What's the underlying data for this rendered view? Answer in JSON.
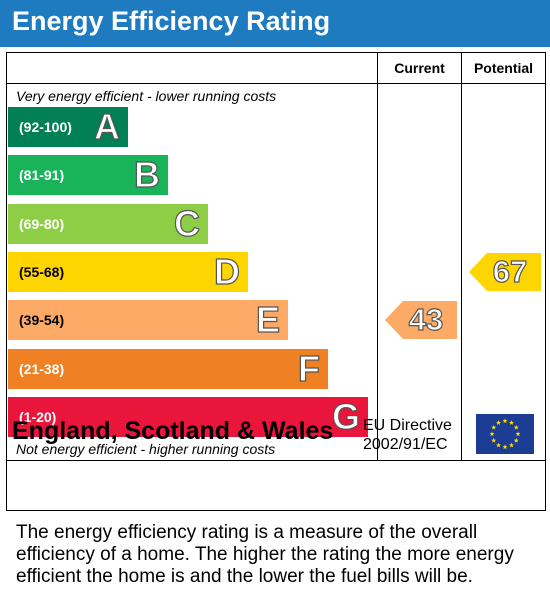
{
  "header": {
    "title": "Energy Efficiency Rating"
  },
  "columns": {
    "current": "Current",
    "potential": "Potential"
  },
  "captions": {
    "top": "Very energy efficient - lower running costs",
    "bottom": "Not energy efficient - higher running costs"
  },
  "chart_data": {
    "type": "bar",
    "categories": [
      "A",
      "B",
      "C",
      "D",
      "E",
      "F",
      "G"
    ],
    "bands": [
      {
        "letter": "A",
        "range": "(92-100)",
        "color": "#008054"
      },
      {
        "letter": "B",
        "range": "(81-91)",
        "color": "#19b459"
      },
      {
        "letter": "C",
        "range": "(69-80)",
        "color": "#8dce46"
      },
      {
        "letter": "D",
        "range": "(55-68)",
        "color": "#ffd500"
      },
      {
        "letter": "E",
        "range": "(39-54)",
        "color": "#fcaa65"
      },
      {
        "letter": "F",
        "range": "(21-38)",
        "color": "#ef8023"
      },
      {
        "letter": "G",
        "range": "(1-20)",
        "color": "#e9153b"
      }
    ],
    "current": {
      "value": 43,
      "label": "43",
      "band": "E",
      "color": "#fcaa65"
    },
    "potential": {
      "value": 67,
      "label": "67",
      "band": "D",
      "color": "#ffd500"
    }
  },
  "footer": {
    "country": "England, Scotland & Wales",
    "directive_line1": "EU Directive",
    "directive_line2": "2002/91/EC",
    "flag_icon": "eu-flag-icon"
  },
  "description": "The energy efficiency rating is a measure of the overall efficiency of a home. The higher the rating the more energy efficient the home is and the lower the fuel bills will be."
}
